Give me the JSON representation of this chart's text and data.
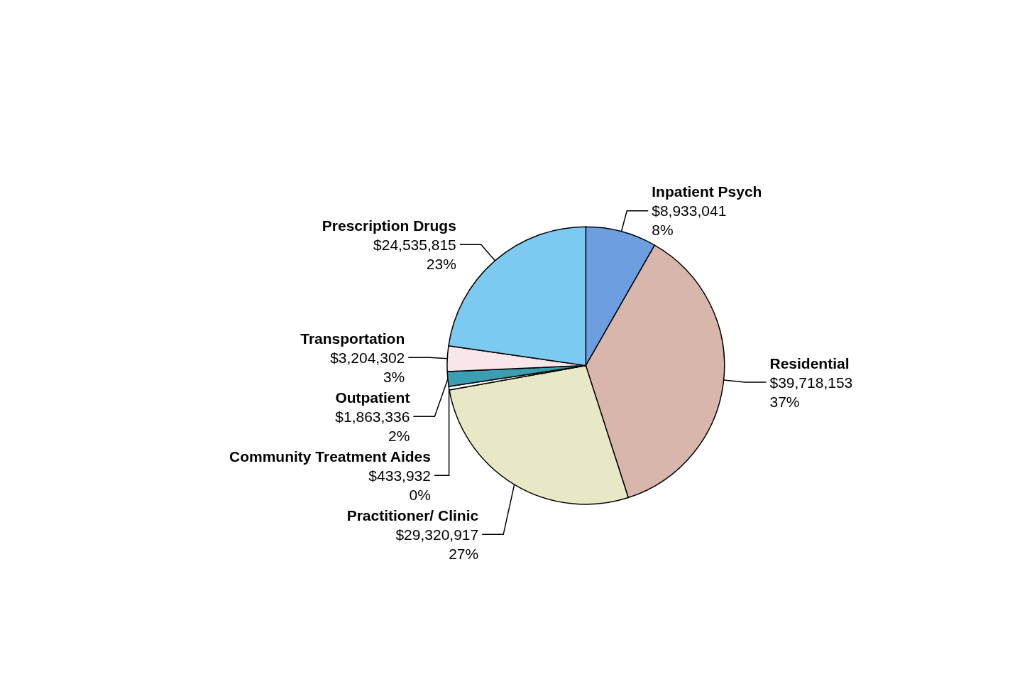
{
  "chart_data": {
    "type": "pie",
    "categories": [
      "Inpatient Psych",
      "Residential",
      "Practitioner/ Clinic",
      "Community Treatment Aides",
      "Outpatient",
      "Transportation",
      "Prescription Drugs"
    ],
    "values": [
      8933041,
      39718153,
      29320917,
      433932,
      1863336,
      3204302,
      24535815
    ],
    "colors": [
      "#6d9fe0",
      "#d8b6ac",
      "#e9e8c6",
      "#ffffff",
      "#3a9fb0",
      "#f9e6ea",
      "#7ccaf2"
    ],
    "value_labels": [
      "$8,933,041\n8%",
      "$39,718,153\n37%",
      "$29,320,917\n27%",
      "$433,932\n0%",
      "$1,863,336\n2%",
      "$3,204,302\n3%",
      "$24,535,815\n23%"
    ],
    "legend": false
  }
}
